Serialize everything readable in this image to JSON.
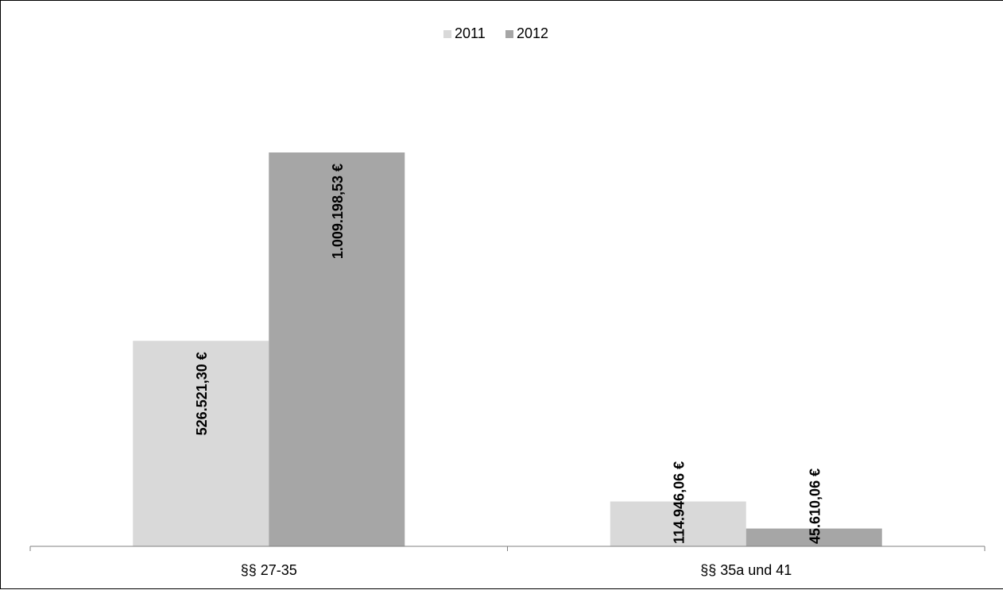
{
  "chart_data": {
    "type": "bar",
    "categories": [
      "§§ 27-35",
      "§§ 35a und 41"
    ],
    "series": [
      {
        "name": "2011",
        "color": "#d9d9d9",
        "values": [
          526521.3,
          114946.06
        ],
        "labels": [
          "526.521,30 €",
          "114.946,06 €"
        ]
      },
      {
        "name": "2012",
        "color": "#a6a6a6",
        "values": [
          1009198.53,
          45610.06
        ],
        "labels": [
          "1.009.198,53 €",
          "45.610,06 €"
        ]
      }
    ],
    "ylim": [
      0,
      1200000
    ],
    "grid": false,
    "legend_position": "top-center",
    "data_label_orientation": "vertical"
  }
}
